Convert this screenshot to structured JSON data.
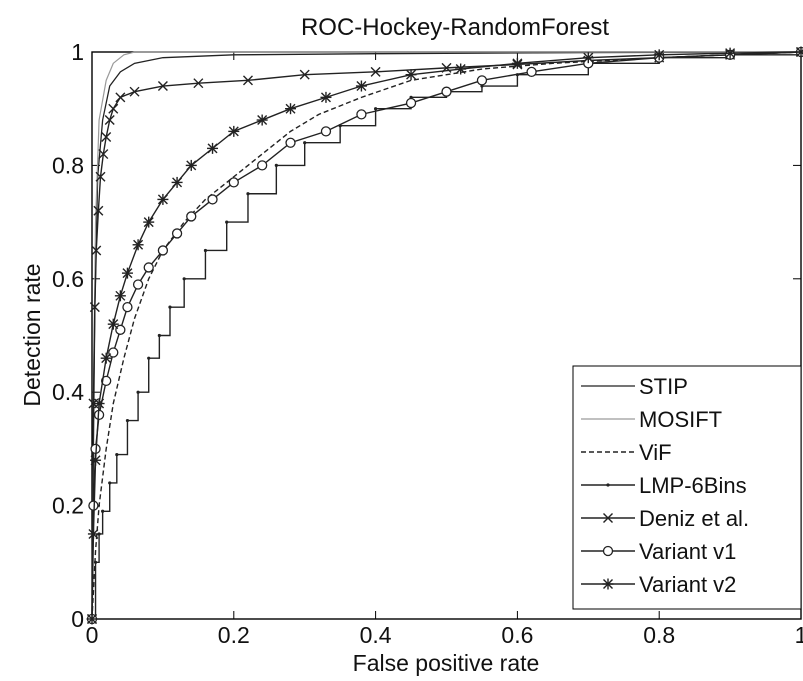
{
  "chart_data": {
    "type": "line",
    "title": "ROC-Hockey-RandomForest",
    "xlabel": "False positive rate",
    "ylabel": "Detection rate",
    "xlim": [
      0,
      1
    ],
    "ylim": [
      0,
      1
    ],
    "x_ticks": [
      0,
      0.2,
      0.4,
      0.6,
      0.8,
      1
    ],
    "y_ticks": [
      0,
      0.2,
      0.4,
      0.6,
      0.8,
      1
    ],
    "x_tick_labels": [
      "0",
      "0.2",
      "0.4",
      "0.6",
      "0.8",
      "1"
    ],
    "y_tick_labels": [
      "0",
      "0.2",
      "0.4",
      "0.6",
      "0.8",
      "1"
    ],
    "grid": false,
    "legend_position": "bottom-right",
    "series": [
      {
        "name": "STIP",
        "style": "solid-thin",
        "marker": "none",
        "color": "#222222",
        "points": [
          [
            0,
            0
          ],
          [
            0.002,
            0.3
          ],
          [
            0.004,
            0.55
          ],
          [
            0.008,
            0.78
          ],
          [
            0.015,
            0.88
          ],
          [
            0.025,
            0.94
          ],
          [
            0.04,
            0.965
          ],
          [
            0.06,
            0.98
          ],
          [
            0.1,
            0.99
          ],
          [
            0.2,
            0.995
          ],
          [
            0.4,
            0.997
          ],
          [
            0.7,
            0.999
          ],
          [
            1,
            1
          ]
        ]
      },
      {
        "name": "MOSIFT",
        "style": "solid-gray",
        "marker": "none",
        "color": "#9a9a9a",
        "points": [
          [
            0,
            0
          ],
          [
            0.002,
            0.4
          ],
          [
            0.005,
            0.7
          ],
          [
            0.01,
            0.88
          ],
          [
            0.02,
            0.95
          ],
          [
            0.03,
            0.98
          ],
          [
            0.045,
            0.995
          ],
          [
            0.06,
            1
          ],
          [
            1,
            1
          ]
        ]
      },
      {
        "name": "ViF",
        "style": "dashed",
        "marker": "none",
        "color": "#222222",
        "points": [
          [
            0,
            0
          ],
          [
            0.005,
            0.12
          ],
          [
            0.01,
            0.2
          ],
          [
            0.02,
            0.3
          ],
          [
            0.03,
            0.38
          ],
          [
            0.045,
            0.46
          ],
          [
            0.06,
            0.53
          ],
          [
            0.08,
            0.6
          ],
          [
            0.1,
            0.65
          ],
          [
            0.13,
            0.7
          ],
          [
            0.16,
            0.74
          ],
          [
            0.2,
            0.78
          ],
          [
            0.24,
            0.82
          ],
          [
            0.28,
            0.86
          ],
          [
            0.32,
            0.89
          ],
          [
            0.38,
            0.92
          ],
          [
            0.45,
            0.95
          ],
          [
            0.55,
            0.97
          ],
          [
            0.65,
            0.98
          ],
          [
            0.8,
            0.99
          ],
          [
            1,
            1
          ]
        ]
      },
      {
        "name": "LMP-6Bins",
        "style": "stepped",
        "marker": "dot",
        "color": "#222222",
        "points": [
          [
            0,
            0
          ],
          [
            0.005,
            0.1
          ],
          [
            0.01,
            0.15
          ],
          [
            0.015,
            0.19
          ],
          [
            0.025,
            0.24
          ],
          [
            0.035,
            0.29
          ],
          [
            0.05,
            0.35
          ],
          [
            0.065,
            0.4
          ],
          [
            0.08,
            0.46
          ],
          [
            0.095,
            0.5
          ],
          [
            0.11,
            0.55
          ],
          [
            0.13,
            0.6
          ],
          [
            0.16,
            0.65
          ],
          [
            0.19,
            0.7
          ],
          [
            0.22,
            0.75
          ],
          [
            0.26,
            0.8
          ],
          [
            0.3,
            0.84
          ],
          [
            0.35,
            0.87
          ],
          [
            0.4,
            0.9
          ],
          [
            0.45,
            0.92
          ],
          [
            0.5,
            0.93
          ],
          [
            0.55,
            0.94
          ],
          [
            0.6,
            0.96
          ],
          [
            0.7,
            0.98
          ],
          [
            0.8,
            0.99
          ],
          [
            0.9,
            0.995
          ],
          [
            1,
            1
          ]
        ]
      },
      {
        "name": "Deniz et al.",
        "style": "solid",
        "marker": "x",
        "color": "#222222",
        "points": [
          [
            0,
            0
          ],
          [
            0.002,
            0.38
          ],
          [
            0.004,
            0.55
          ],
          [
            0.006,
            0.65
          ],
          [
            0.009,
            0.72
          ],
          [
            0.012,
            0.78
          ],
          [
            0.016,
            0.82
          ],
          [
            0.02,
            0.85
          ],
          [
            0.025,
            0.88
          ],
          [
            0.03,
            0.9
          ],
          [
            0.04,
            0.92
          ],
          [
            0.06,
            0.93
          ],
          [
            0.1,
            0.94
          ],
          [
            0.15,
            0.945
          ],
          [
            0.22,
            0.95
          ],
          [
            0.3,
            0.96
          ],
          [
            0.4,
            0.965
          ],
          [
            0.5,
            0.972
          ],
          [
            0.6,
            0.978
          ],
          [
            0.7,
            0.985
          ],
          [
            0.8,
            0.99
          ],
          [
            0.9,
            0.995
          ],
          [
            1,
            1
          ]
        ]
      },
      {
        "name": "Variant v1",
        "style": "solid",
        "marker": "circle",
        "color": "#222222",
        "points": [
          [
            0,
            0
          ],
          [
            0.002,
            0.2
          ],
          [
            0.005,
            0.3
          ],
          [
            0.01,
            0.36
          ],
          [
            0.02,
            0.42
          ],
          [
            0.03,
            0.47
          ],
          [
            0.04,
            0.51
          ],
          [
            0.05,
            0.55
          ],
          [
            0.065,
            0.59
          ],
          [
            0.08,
            0.62
          ],
          [
            0.1,
            0.65
          ],
          [
            0.12,
            0.68
          ],
          [
            0.14,
            0.71
          ],
          [
            0.17,
            0.74
          ],
          [
            0.2,
            0.77
          ],
          [
            0.24,
            0.8
          ],
          [
            0.28,
            0.84
          ],
          [
            0.33,
            0.86
          ],
          [
            0.38,
            0.89
          ],
          [
            0.45,
            0.91
          ],
          [
            0.5,
            0.93
          ],
          [
            0.55,
            0.95
          ],
          [
            0.62,
            0.965
          ],
          [
            0.7,
            0.98
          ],
          [
            0.8,
            0.99
          ],
          [
            0.9,
            0.995
          ],
          [
            1,
            1
          ]
        ]
      },
      {
        "name": "Variant v2",
        "style": "solid",
        "marker": "star",
        "color": "#222222",
        "points": [
          [
            0,
            0
          ],
          [
            0.002,
            0.15
          ],
          [
            0.005,
            0.28
          ],
          [
            0.01,
            0.38
          ],
          [
            0.02,
            0.46
          ],
          [
            0.03,
            0.52
          ],
          [
            0.04,
            0.57
          ],
          [
            0.05,
            0.61
          ],
          [
            0.065,
            0.66
          ],
          [
            0.08,
            0.7
          ],
          [
            0.1,
            0.74
          ],
          [
            0.12,
            0.77
          ],
          [
            0.14,
            0.8
          ],
          [
            0.17,
            0.83
          ],
          [
            0.2,
            0.86
          ],
          [
            0.24,
            0.88
          ],
          [
            0.28,
            0.9
          ],
          [
            0.33,
            0.92
          ],
          [
            0.38,
            0.94
          ],
          [
            0.45,
            0.96
          ],
          [
            0.52,
            0.97
          ],
          [
            0.6,
            0.98
          ],
          [
            0.7,
            0.99
          ],
          [
            0.8,
            0.995
          ],
          [
            0.9,
            0.998
          ],
          [
            1,
            1
          ]
        ]
      }
    ]
  }
}
